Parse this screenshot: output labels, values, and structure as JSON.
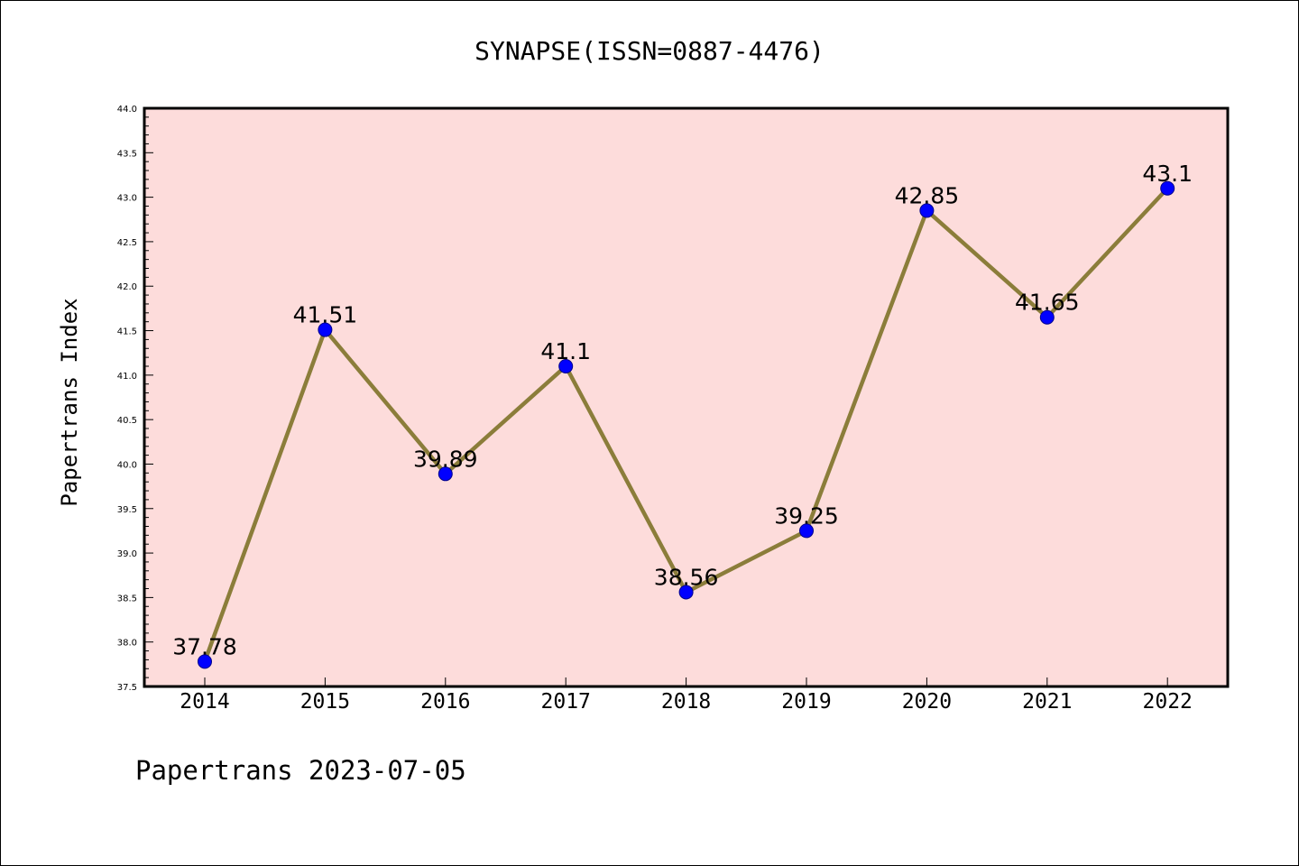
{
  "chart_data": {
    "type": "line",
    "title": "SYNAPSE(ISSN=0887-4476)",
    "ylabel": "Papertrans Index",
    "xlabel": "",
    "footer": "Papertrans 2023-07-05",
    "categories": [
      "2014",
      "2015",
      "2016",
      "2017",
      "2018",
      "2019",
      "2020",
      "2021",
      "2022"
    ],
    "values": [
      37.78,
      41.51,
      39.89,
      41.1,
      38.56,
      39.25,
      42.85,
      41.65,
      43.1
    ],
    "data_labels": [
      "37.78",
      "41.51",
      "39.89",
      "41.1",
      "38.56",
      "39.25",
      "42.85",
      "41.65",
      "43.1"
    ],
    "ylim": [
      37.5,
      44.0
    ],
    "yticks": [
      "37.5",
      "38.0",
      "38.5",
      "39.0",
      "39.5",
      "40.0",
      "40.5",
      "41.0",
      "41.5",
      "42.0",
      "42.5",
      "43.0",
      "43.5",
      "44.0"
    ],
    "grid": false,
    "legend": "none",
    "colors": {
      "plot_background": "#fddcdb",
      "line": "#8b7d3a",
      "marker": "#0000ff",
      "marker_edge": "#00008b"
    }
  }
}
